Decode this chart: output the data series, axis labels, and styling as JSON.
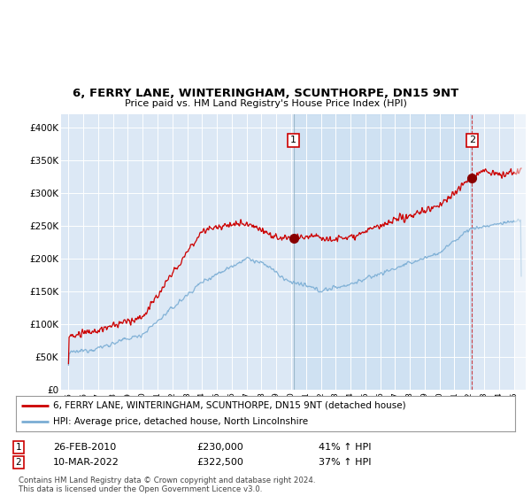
{
  "title": "6, FERRY LANE, WINTERINGHAM, SCUNTHORPE, DN15 9NT",
  "subtitle": "Price paid vs. HM Land Registry's House Price Index (HPI)",
  "bg_color": "#dce8f5",
  "outer_bg_color": "#ffffff",
  "red_line_color": "#cc0000",
  "blue_line_color": "#7aadd4",
  "shade_color": "#cce0f0",
  "marker1_x": 2010.15,
  "marker1_y": 230000,
  "marker1_label": "1",
  "marker1_date": "26-FEB-2010",
  "marker1_price": "£230,000",
  "marker1_hpi": "41% ↑ HPI",
  "marker2_x": 2022.19,
  "marker2_y": 322500,
  "marker2_label": "2",
  "marker2_date": "10-MAR-2022",
  "marker2_price": "£322,500",
  "marker2_hpi": "37% ↑ HPI",
  "legend_label1": "6, FERRY LANE, WINTERINGHAM, SCUNTHORPE, DN15 9NT (detached house)",
  "legend_label2": "HPI: Average price, detached house, North Lincolnshire",
  "footer": "Contains HM Land Registry data © Crown copyright and database right 2024.\nThis data is licensed under the Open Government Licence v3.0.",
  "ylim": [
    0,
    420000
  ],
  "xlim": [
    1994.5,
    2025.8
  ],
  "yticks": [
    0,
    50000,
    100000,
    150000,
    200000,
    250000,
    300000,
    350000,
    400000
  ],
  "ytick_labels": [
    "£0",
    "£50K",
    "£100K",
    "£150K",
    "£200K",
    "£250K",
    "£300K",
    "£350K",
    "£400K"
  ],
  "xticks": [
    1995,
    1996,
    1997,
    1998,
    1999,
    2000,
    2001,
    2002,
    2003,
    2004,
    2005,
    2006,
    2007,
    2008,
    2009,
    2010,
    2011,
    2012,
    2013,
    2014,
    2015,
    2016,
    2017,
    2018,
    2019,
    2020,
    2021,
    2022,
    2023,
    2024,
    2025
  ]
}
